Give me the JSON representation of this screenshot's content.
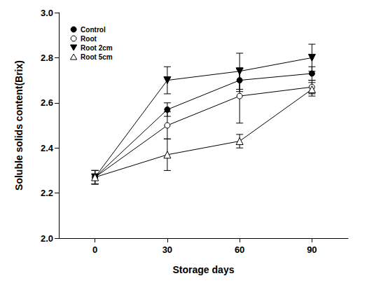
{
  "chart_data": {
    "type": "line",
    "x_label": "Storage days",
    "y_label": "Soluble solids content(Brix)",
    "x": [
      0,
      30,
      60,
      90
    ],
    "xlim": [
      -15,
      105
    ],
    "xticks": [
      0,
      30,
      60,
      90
    ],
    "ylim": [
      2.0,
      3.0
    ],
    "yticks": [
      {
        "value": 2.0,
        "label": "2.0"
      },
      {
        "value": 2.2,
        "label": "2.2"
      },
      {
        "value": 2.4,
        "label": "2.4"
      },
      {
        "value": 2.6,
        "label": "2.6"
      },
      {
        "value": 2.8,
        "label": "2.8"
      },
      {
        "value": 3.0,
        "label": "3.0"
      }
    ],
    "grid": false,
    "legend": "upper left",
    "series": [
      {
        "name": "Control",
        "color": "#000000",
        "marker": "circle",
        "values": [
          2.27,
          2.57,
          2.7,
          2.73
        ],
        "errors": [
          0.03,
          0.03,
          0.05,
          0.03
        ]
      },
      {
        "name": "Root",
        "color": "#000000",
        "marker": "circle_open",
        "values": [
          2.27,
          2.5,
          2.63,
          2.67
        ],
        "errors": [
          0.03,
          0.06,
          0.12,
          0.03
        ]
      },
      {
        "name": "Root 2cm",
        "color": "#000000",
        "marker": "triangle_down",
        "values": [
          2.27,
          2.7,
          2.74,
          2.8
        ],
        "errors": [
          0.03,
          0.06,
          0.08,
          0.06
        ]
      },
      {
        "name": "Root 5cm",
        "color": "#000000",
        "marker": "triangle_open",
        "values": [
          2.27,
          2.37,
          2.43,
          2.66
        ],
        "errors": [
          0.03,
          0.07,
          0.03,
          0.03
        ]
      }
    ]
  }
}
